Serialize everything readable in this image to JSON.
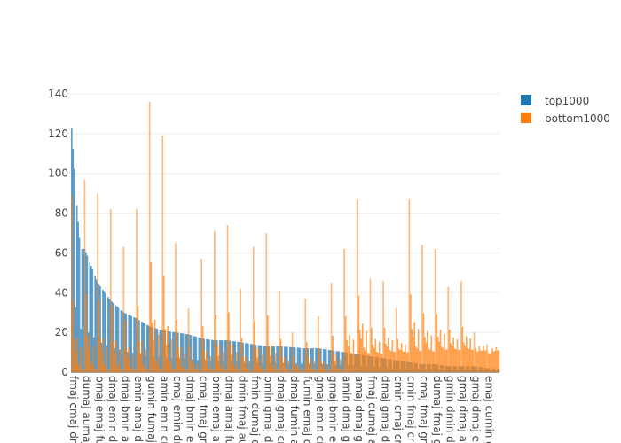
{
  "chart_data": {
    "type": "bar",
    "barmode": "overlay",
    "title": "",
    "xlabel": "",
    "ylabel": "",
    "ylim": [
      0,
      140
    ],
    "yticks": [
      0,
      20,
      40,
      60,
      80,
      100,
      120,
      140
    ],
    "grid": true,
    "legend_position": "top-right",
    "categories": [
      "fmaj cmaj dr",
      "dumaj aumaj",
      "bmaj emaj fu",
      "dmaj emin dr",
      "dmaj bmin ar",
      "emin amaj dr",
      "gumin fumaj",
      "amin emin cr",
      "cmaj emin dr",
      "dmaj bmin er",
      "cmaj fmaj gr",
      "bmin emaj ar",
      "dmaj amaj fu",
      "dmin fmaj au",
      "fmin dumaj c",
      "bmin gmaj dr",
      "dmaj gmaj cr",
      "dmaj fumin a",
      "fumin emaj d",
      "gmaj emin cr",
      "gmaj bmin er",
      "amin dmaj gr",
      "amaj dmaj gr",
      "fmaj dumaj a",
      "dmaj gmaj dr",
      "cmin cmaj cr",
      "cmin fmaj cr",
      "cmaj fmaj gr",
      "dumaj fmaj g",
      "gmin dmin d",
      "gmaj dmaj ar",
      "gmaj dmaj er",
      "emaj cumin g"
    ],
    "series": [
      {
        "name": "top1000",
        "color": "#1f77b4",
        "values": [
          123,
          62,
          45,
          36,
          30,
          27,
          23,
          21,
          20,
          19,
          17,
          16,
          16,
          15,
          14,
          13,
          13,
          12.5,
          12,
          12,
          11,
          10,
          9,
          8,
          7,
          6,
          5,
          4,
          4,
          3,
          3,
          3,
          2
        ]
      },
      {
        "name": "bottom1000",
        "color": "#ff7f0e",
        "peaks": [
          89,
          97,
          90,
          82,
          63,
          82,
          136,
          119,
          65,
          32,
          57,
          71,
          74,
          42,
          63,
          70,
          41,
          20,
          37,
          28,
          45,
          62,
          87,
          47,
          46,
          32,
          87,
          64,
          62,
          43,
          46,
          20,
          14
        ],
        "floors": [
          0,
          0,
          0,
          0,
          0,
          0,
          0,
          0,
          0,
          0,
          0,
          0,
          0,
          0,
          0,
          0,
          0,
          0,
          0,
          0,
          0,
          8,
          9,
          9,
          10,
          10,
          10,
          10,
          11,
          11,
          11,
          11,
          11
        ]
      }
    ]
  }
}
